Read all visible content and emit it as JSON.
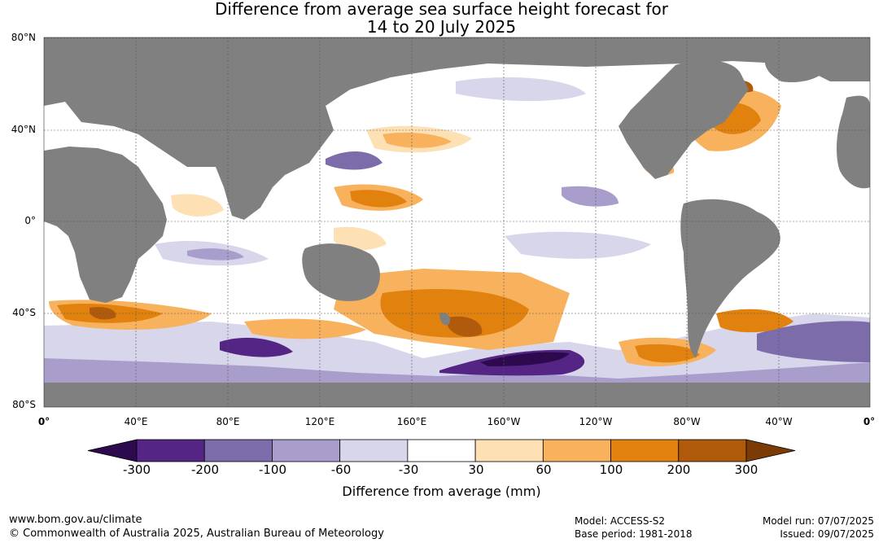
{
  "title": {
    "line1": "Difference from average sea surface height forecast for",
    "line2": "14 to 20 July 2025"
  },
  "map": {
    "lat_labels": [
      "80°N",
      "40°N",
      "0°",
      "40°S",
      "80°S"
    ],
    "lon_labels": [
      "0°",
      "40°E",
      "80°E",
      "120°E",
      "160°E",
      "160°W",
      "120°W",
      "80°W",
      "40°W",
      "0°"
    ]
  },
  "colorbar": {
    "ticks": [
      "-300",
      "-200",
      "-100",
      "-60",
      "-30",
      "30",
      "60",
      "100",
      "200",
      "300"
    ],
    "colors": [
      "#2d0a4e",
      "#552586",
      "#7c6daa",
      "#a99ecb",
      "#d8d6ea",
      "#ffffff",
      "#fde0b4",
      "#f8b15c",
      "#e1810e",
      "#b05a0c",
      "#7c3a05"
    ],
    "label": "Difference from average (mm)"
  },
  "footer": {
    "url": "www.bom.gov.au/climate",
    "copyright": "© Commonwealth of Australia 2025, Australian Bureau of Meteorology",
    "model": "Model: ACCESS-S2",
    "base_period": "Base period: 1981-2018",
    "model_run": "Model run: 07/07/2025",
    "issued": "Issued: 09/07/2025"
  }
}
